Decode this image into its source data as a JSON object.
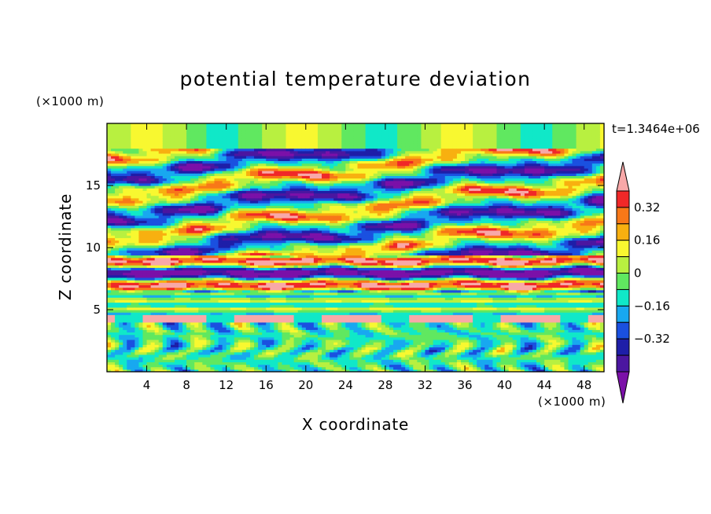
{
  "chart_data": {
    "type": "heatmap",
    "title": "potential temperature deviation",
    "xlabel": "X coordinate",
    "ylabel": "Z coordinate",
    "x_unit": "(×1000 m)",
    "y_unit": "(×1000 m)",
    "time_label": "t=1.3464e+06",
    "xlim": [
      0,
      50
    ],
    "ylim": [
      0,
      20
    ],
    "x_ticks": [
      "4",
      "8",
      "12",
      "16",
      "20",
      "24",
      "28",
      "32",
      "36",
      "40",
      "44",
      "48"
    ],
    "y_ticks": [
      "5",
      "10",
      "15"
    ],
    "colorbar": {
      "levels": [
        -0.48,
        -0.4,
        -0.32,
        -0.24,
        -0.16,
        -0.08,
        0,
        0.08,
        0.16,
        0.24,
        0.32,
        0.4,
        0.48
      ],
      "tick_labels": [
        "0.32",
        "0.16",
        "0",
        "−0.16",
        "−0.32"
      ],
      "colors": [
        "#7b10a8",
        "#4b16a0",
        "#1e1ea8",
        "#1a50e0",
        "#18a8f0",
        "#10e8c8",
        "#60e860",
        "#b8f040",
        "#f8f830",
        "#f8b010",
        "#f87818",
        "#f02828",
        "#f8a8a8"
      ],
      "extend": "both"
    },
    "bands": [
      {
        "z": [
          0,
          4
        ],
        "description": "convective plumes, mixed cyan/green/yellow with blue and orange cells"
      },
      {
        "z": [
          4,
          4.6
        ],
        "value": 0.48,
        "description": "strong positive band"
      },
      {
        "z": [
          4.6,
          6.5
        ],
        "value": 0.05,
        "description": "layered green/yellow/orange stable layer"
      },
      {
        "z": [
          6.5,
          9.5
        ],
        "description": "alternating strong positive and negative layers"
      },
      {
        "z": [
          9.5,
          18
        ],
        "description": "gravity-wave cells alternating sign"
      },
      {
        "z": [
          18,
          20
        ],
        "value": 0.08,
        "description": "weak positive near top"
      }
    ]
  }
}
